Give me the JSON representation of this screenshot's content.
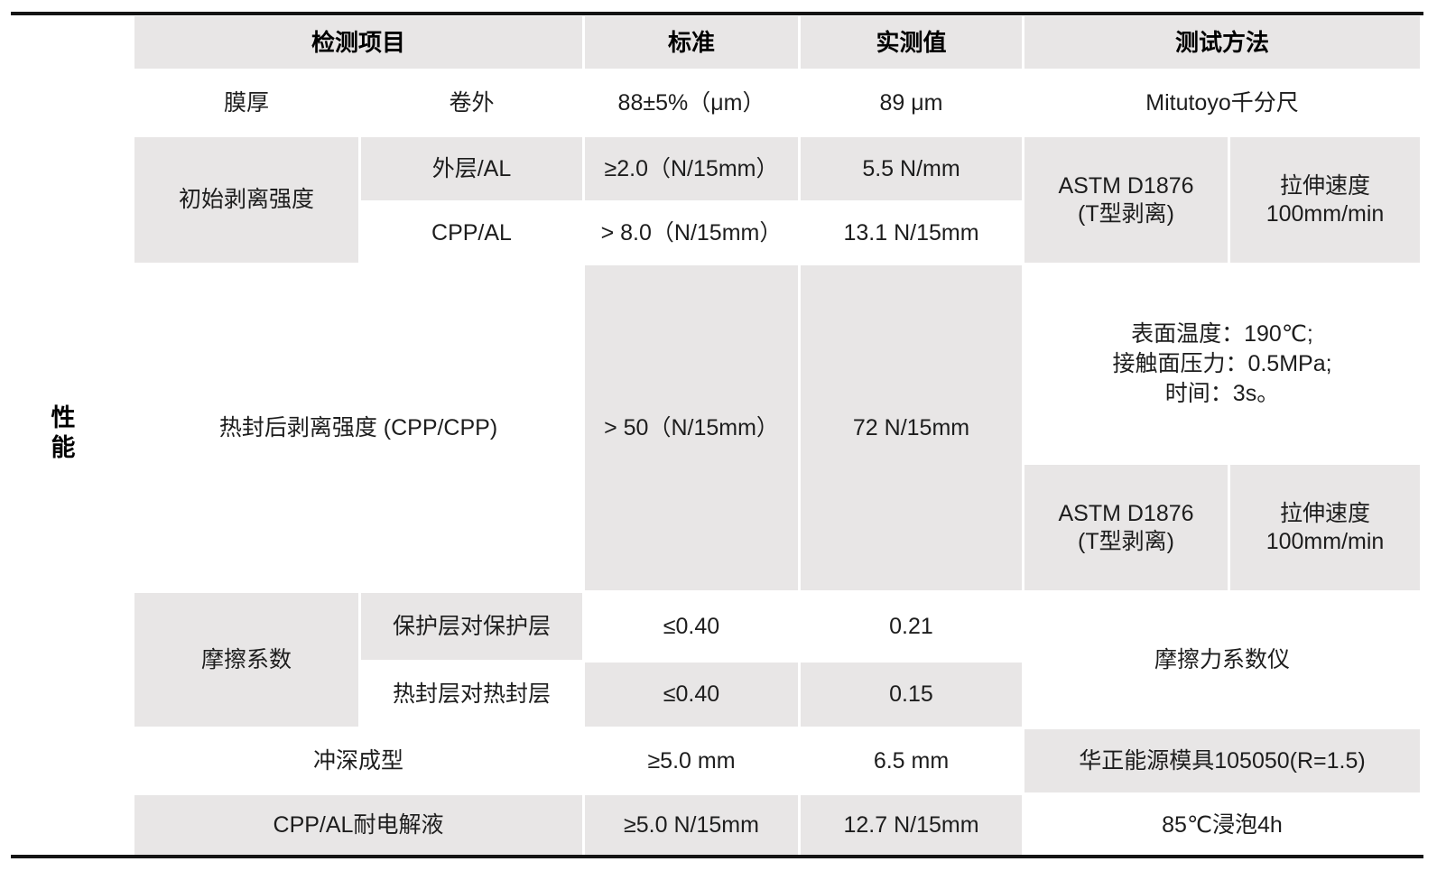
{
  "side_label": "性能",
  "header": {
    "item": "检测项目",
    "standard": "标准",
    "measured": "实测值",
    "method": "测试方法"
  },
  "colors": {
    "cell_gray": "#e8e6e6",
    "rule_black": "#141414"
  },
  "rows": {
    "film_thickness": {
      "item": "膜厚",
      "sub": "卷外",
      "standard": "88±5%（μm）",
      "measured": "89 μm",
      "method": "Mitutoyo千分尺"
    },
    "initial_peel": {
      "item": "初始剥离强度",
      "outer_al": {
        "sub": "外层/AL",
        "standard": "≥2.0（N/15mm）",
        "measured": "5.5 N/mm"
      },
      "cpp_al": {
        "sub": "CPP/AL",
        "standard": "> 8.0（N/15mm）",
        "measured": "13.1 N/15mm"
      },
      "method_std": "ASTM D1876",
      "method_std_note": "(T型剥离)",
      "method_speed_line1": "拉伸速度",
      "method_speed_line2": "100mm/min"
    },
    "heat_seal_peel": {
      "item": "热封后剥离强度 (CPP/CPP)",
      "standard": "> 50（N/15mm）",
      "measured": "72 N/15mm",
      "conditions": [
        "表面温度：190℃;",
        "接触面压力：0.5MPa;",
        "时间：3s。"
      ],
      "method_std": "ASTM D1876",
      "method_std_note": "(T型剥离)",
      "method_speed_line1": "拉伸速度",
      "method_speed_line2": "100mm/min"
    },
    "friction": {
      "item": "摩擦系数",
      "protective": {
        "sub": "保护层对保护层",
        "standard": "≤0.40",
        "measured": "0.21"
      },
      "sealing": {
        "sub": "热封层对热封层",
        "standard": "≤0.40",
        "measured": "0.15"
      },
      "method": "摩擦力系数仪"
    },
    "deep_drawing": {
      "item": "冲深成型",
      "standard": "≥5.0 mm",
      "measured": "6.5 mm",
      "method": "华正能源模具105050(R=1.5)"
    },
    "electrolyte_resistance": {
      "item": "CPP/AL耐电解液",
      "standard": "≥5.0 N/15mm",
      "measured": "12.7 N/15mm",
      "method": "85℃浸泡4h"
    }
  }
}
